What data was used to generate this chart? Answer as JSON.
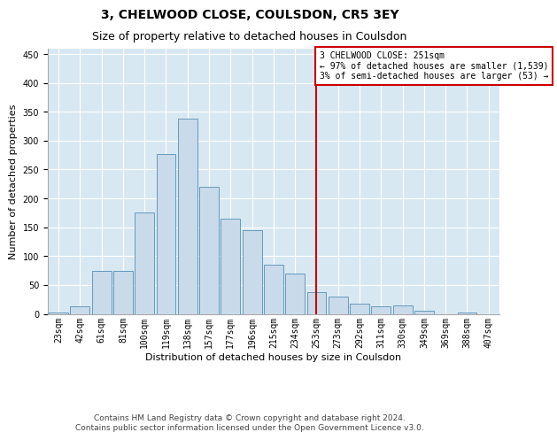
{
  "title": "3, CHELWOOD CLOSE, COULSDON, CR5 3EY",
  "subtitle": "Size of property relative to detached houses in Coulsdon",
  "xlabel": "Distribution of detached houses by size in Coulsdon",
  "ylabel": "Number of detached properties",
  "categories": [
    "23sqm",
    "42sqm",
    "61sqm",
    "81sqm",
    "100sqm",
    "119sqm",
    "138sqm",
    "157sqm",
    "177sqm",
    "196sqm",
    "215sqm",
    "234sqm",
    "253sqm",
    "273sqm",
    "292sqm",
    "311sqm",
    "330sqm",
    "349sqm",
    "369sqm",
    "388sqm",
    "407sqm"
  ],
  "bar_values": [
    3,
    13,
    75,
    75,
    175,
    277,
    338,
    220,
    165,
    145,
    85,
    70,
    37,
    30,
    18,
    13,
    15,
    6,
    0,
    2,
    0
  ],
  "bar_color": "#c9daea",
  "bar_edge_color": "#6699bb",
  "grid_color": "#ffffff",
  "bg_color": "#d8e8f2",
  "vline_x_index": 12,
  "vline_color": "#cc0000",
  "annotation_text": "3 CHELWOOD CLOSE: 251sqm\n← 97% of detached houses are smaller (1,539)\n3% of semi-detached houses are larger (53) →",
  "annotation_box_color": "#cc0000",
  "ylim": [
    0,
    460
  ],
  "yticks": [
    0,
    50,
    100,
    150,
    200,
    250,
    300,
    350,
    400,
    450
  ],
  "footer": "Contains HM Land Registry data © Crown copyright and database right 2024.\nContains public sector information licensed under the Open Government Licence v3.0.",
  "title_fontsize": 10,
  "subtitle_fontsize": 9,
  "label_fontsize": 8,
  "tick_fontsize": 7,
  "footer_fontsize": 6.5
}
